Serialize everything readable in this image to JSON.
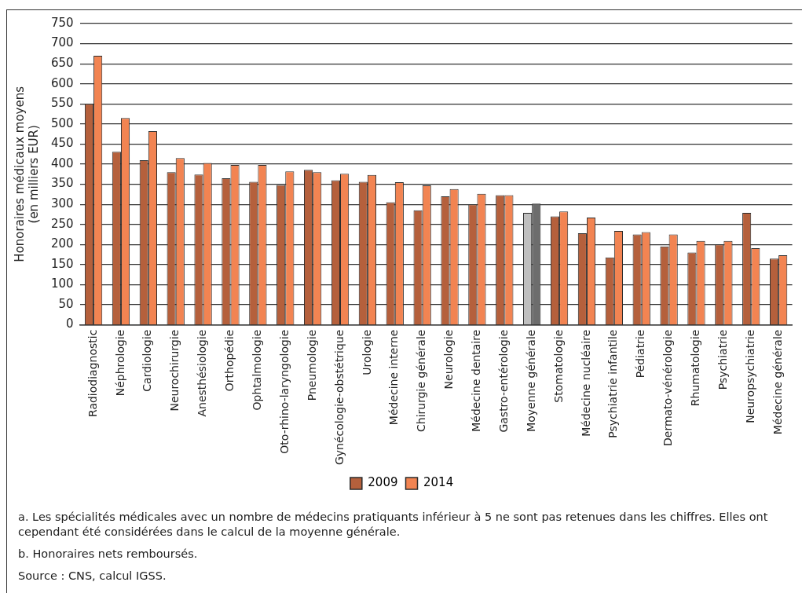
{
  "chart_data": {
    "type": "bar",
    "ylabel": "Honoraires médicaux moyens\n(en milliers EUR)",
    "categories": [
      "Radiodiagnostic",
      "Néphrologie",
      "Cardiologie",
      "Neurochirurgie",
      "Anesthésiologie",
      "Orthopédie",
      "Ophtalmologie",
      "Oto-rhino-laryngologie",
      "Pneumologie",
      "Gynécologie-obstétrique",
      "Urologie",
      "Médecine interne",
      "Chirurgie générale",
      "Neurologie",
      "Médecine dentaire",
      "Gastro-entérologie",
      "Moyenne générale",
      "Stomatologie",
      "Médecine nucléaire",
      "Psychiatrie infantile",
      "Pédiatrie",
      "Dermato-vénérologie",
      "Rhumatologie",
      "Psychiatrie",
      "Neuropsychiatrie",
      "Médecine générale"
    ],
    "series": [
      {
        "name": "2009",
        "color": "#b5603c",
        "colors": [
          "#b5603c",
          "#b5603c",
          "#b5603c",
          "#b5603c",
          "#b5603c",
          "#b5603c",
          "#b5603c",
          "#b5603c",
          "#b5603c",
          "#b5603c",
          "#b5603c",
          "#b5603c",
          "#b5603c",
          "#b5603c",
          "#b5603c",
          "#b5603c",
          "#bfbfbf",
          "#b5603c",
          "#b5603c",
          "#b5603c",
          "#b5603c",
          "#b5603c",
          "#b5603c",
          "#b5603c",
          "#b5603c",
          "#b5603c"
        ],
        "values": [
          550,
          431,
          410,
          380,
          374,
          365,
          356,
          348,
          386,
          360,
          356,
          305,
          285,
          320,
          300,
          323,
          279,
          270,
          228,
          168,
          225,
          195,
          180,
          200,
          279,
          165
        ]
      },
      {
        "name": "2014",
        "color": "#f28452",
        "colors": [
          "#f28452",
          "#f28452",
          "#f28452",
          "#f28452",
          "#f28452",
          "#f28452",
          "#f28452",
          "#f28452",
          "#f28452",
          "#f28452",
          "#f28452",
          "#f28452",
          "#f28452",
          "#f28452",
          "#f28452",
          "#f28452",
          "#6d6d6d",
          "#f28452",
          "#f28452",
          "#f28452",
          "#f28452",
          "#f28452",
          "#f28452",
          "#f28452",
          "#f28452",
          "#f28452"
        ],
        "values": [
          670,
          515,
          482,
          415,
          403,
          398,
          398,
          382,
          380,
          376,
          373,
          355,
          347,
          338,
          326,
          323,
          302,
          282,
          267,
          234,
          231,
          225,
          209,
          209,
          191,
          173
        ]
      }
    ],
    "ylim": [
      0,
      750
    ],
    "yticks": [
      0,
      50,
      100,
      150,
      200,
      250,
      300,
      350,
      400,
      450,
      500,
      550,
      600,
      650,
      700,
      750
    ],
    "grid": "y",
    "legend": "bottom",
    "annotations": [
      "a.  Les spécialités médicales avec un nombre de médecins pratiquants inférieur à 5 ne sont pas retenues dans les chiffres. Elles ont cependant été considérées dans le calcul de la moyenne générale.",
      "b.  Honoraires nets remboursés.",
      "Source : CNS, calcul IGSS."
    ]
  }
}
